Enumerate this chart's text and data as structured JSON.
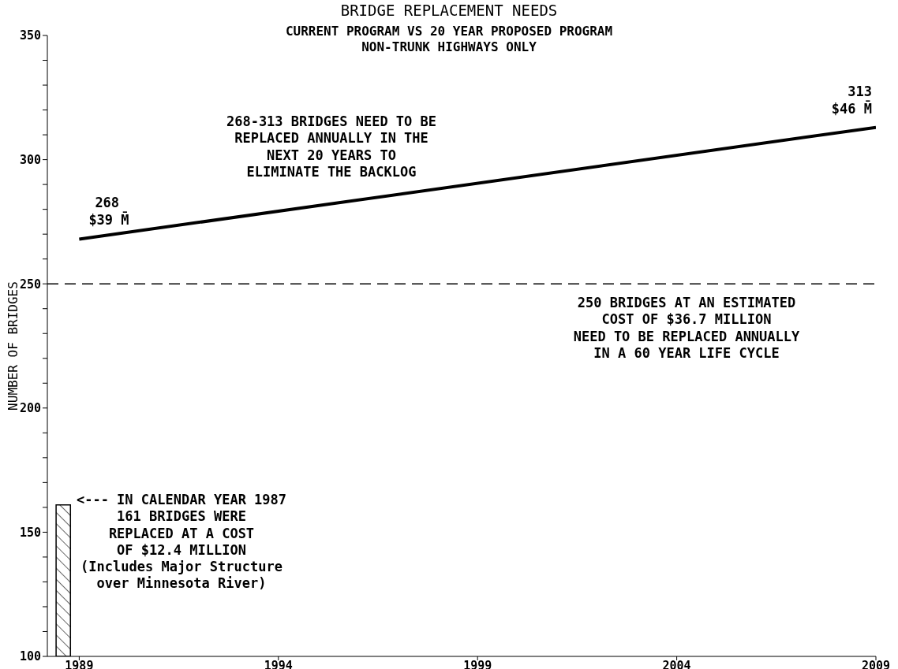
{
  "chart_data": {
    "type": "line",
    "title": "BRIDGE REPLACEMENT NEEDS",
    "subtitle": "CURRENT PROGRAM VS 20 YEAR PROPOSED PROGRAM\nNON-TRUNK HIGHWAYS ONLY",
    "ylabel": "NUMBER OF BRIDGES",
    "xlim": [
      1988.2,
      2009
    ],
    "xticks": [
      1989,
      1994,
      1999,
      2004,
      2009
    ],
    "ylim": [
      100,
      350
    ],
    "yticks": [
      100,
      {
        "value": 110,
        "label": null
      },
      {
        "value": 120,
        "label": null
      },
      {
        "value": 130,
        "label": null
      },
      {
        "value": 140,
        "label": null
      },
      150,
      {
        "value": 160,
        "label": null
      },
      {
        "value": 170,
        "label": null
      },
      {
        "value": 180,
        "label": null
      },
      {
        "value": 190,
        "label": null
      },
      200,
      {
        "value": 210,
        "label": null
      },
      {
        "value": 220,
        "label": null
      },
      {
        "value": 230,
        "label": null
      },
      {
        "value": 240,
        "label": null
      },
      250,
      {
        "value": 260,
        "label": null
      },
      {
        "value": 270,
        "label": null
      },
      {
        "value": 280,
        "label": null
      },
      {
        "value": 290,
        "label": null
      },
      300,
      {
        "value": 310,
        "label": null
      },
      {
        "value": 320,
        "label": null
      },
      {
        "value": 330,
        "label": null
      },
      {
        "value": 340,
        "label": null
      },
      350
    ],
    "series": [
      {
        "type": "bar",
        "x": [
          1988.6
        ],
        "base": [
          100
        ],
        "values": [
          61
        ],
        "color": "#000000"
      },
      {
        "x": [
          1989,
          2009
        ],
        "values": [
          268,
          313
        ],
        "value_labels": [
          "268",
          "313"
        ],
        "color": "#000000"
      }
    ],
    "ref_lines": [
      {
        "axis": "y",
        "value": 250,
        "label": "250 BRIDGES AT AN ESTIMATED\nCOST OF $36.7 MILLION\nNEED TO BE REPLACED ANNUALLY\nIN A 60 YEAR LIFE CYCLE",
        "color": "#000000",
        "line_style": "dashed"
      }
    ],
    "annotations": [
      {
        "text": "$39 M̄",
        "x": 1989,
        "y": 268
      },
      {
        "text": "$46 M̄",
        "x": 2009,
        "y": 313
      },
      "268-313 BRIDGES NEED TO BE\nREPLACED ANNUALLY IN THE\nNEXT 20 YEARS TO\nELIMINATE THE BACKLOG",
      "<--- IN CALENDAR YEAR 1987\n161 BRIDGES WERE\nREPLACED AT A COST\nOF $12.4 MILLION\n(Includes Major Structure\nover Minnesota River)"
    ]
  }
}
